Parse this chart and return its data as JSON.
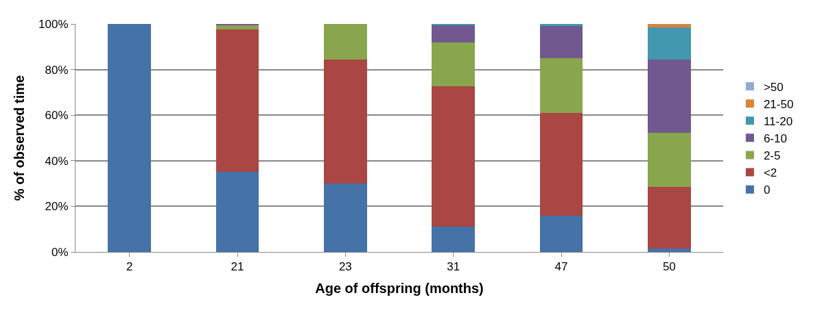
{
  "chart_data": {
    "type": "bar",
    "stacked": true,
    "xlabel": "Age of offspring (months)",
    "ylabel": "% of observed time",
    "categories": [
      "2",
      "21",
      "23",
      "31",
      "47",
      "50"
    ],
    "ylim": [
      0,
      100
    ],
    "yticks": [
      {
        "value": 0,
        "label": "0%"
      },
      {
        "value": 20,
        "label": "20%"
      },
      {
        "value": 40,
        "label": "40%"
      },
      {
        "value": 60,
        "label": "60%"
      },
      {
        "value": 80,
        "label": "80%"
      },
      {
        "value": 100,
        "label": "100%"
      }
    ],
    "grid": "y",
    "legend": "right",
    "series": [
      {
        "name": "0",
        "color": "#4572a7",
        "values": [
          100,
          35,
          30,
          11,
          16,
          1.6
        ]
      },
      {
        "name": "<2",
        "color": "#aa4643",
        "values": [
          0,
          62.7,
          54.4,
          61.7,
          45,
          26.8
        ]
      },
      {
        "name": "2-5",
        "color": "#89a54e",
        "values": [
          0,
          1.9,
          15.6,
          19.3,
          23.9,
          23.9
        ]
      },
      {
        "name": "6-10",
        "color": "#71588f",
        "values": [
          0,
          0.4,
          0,
          7.4,
          14.1,
          32.1
        ]
      },
      {
        "name": "11-20",
        "color": "#4198af",
        "values": [
          0,
          0,
          0,
          0.6,
          1,
          14.2
        ]
      },
      {
        "name": "21-50",
        "color": "#db843d",
        "values": [
          0,
          0,
          0,
          0,
          0,
          1.4
        ]
      },
      {
        "name": ">50",
        "color": "#93a9cf",
        "values": [
          0,
          0,
          0,
          0,
          0,
          0
        ]
      }
    ]
  }
}
